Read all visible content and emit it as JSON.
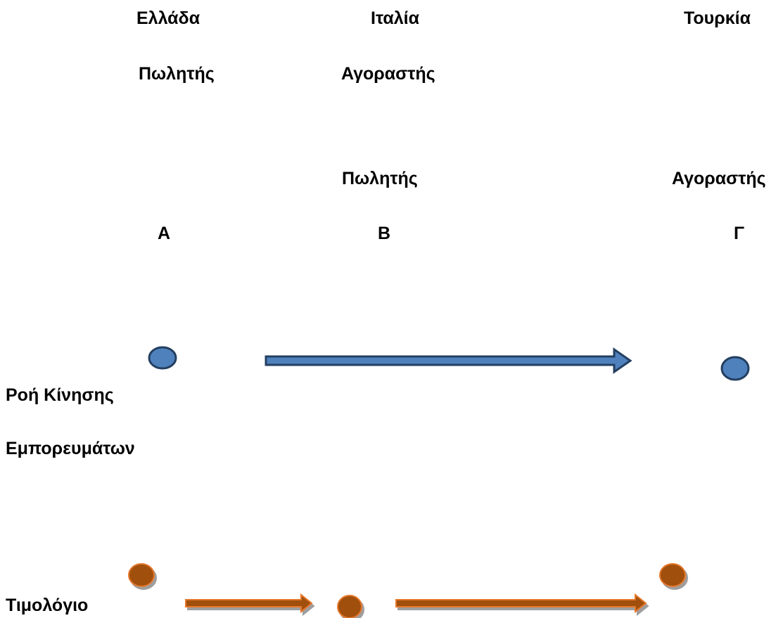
{
  "countries": {
    "a": "Ελλάδα",
    "b": "Ιταλία",
    "c": "Τουρκία"
  },
  "roles": {
    "a_seller": "Πωλητής",
    "b_buyer": "Αγοραστής",
    "b_seller": "Πωλητής",
    "c_buyer": "Αγοραστής"
  },
  "parties": {
    "a": "Α",
    "b": "Β",
    "c": "Γ"
  },
  "rows": {
    "goods_flow_line1": "Ροή Κίνησης",
    "goods_flow_line2": "Εμπορευμάτων",
    "invoice": "Τιμολόγιο"
  },
  "colors": {
    "goods_flow": "#4f81bd",
    "goods_flow_border": "#243f60",
    "invoice": "#a0500c",
    "invoice_border": "#e6782c",
    "shadow": "#9e9e9e"
  }
}
